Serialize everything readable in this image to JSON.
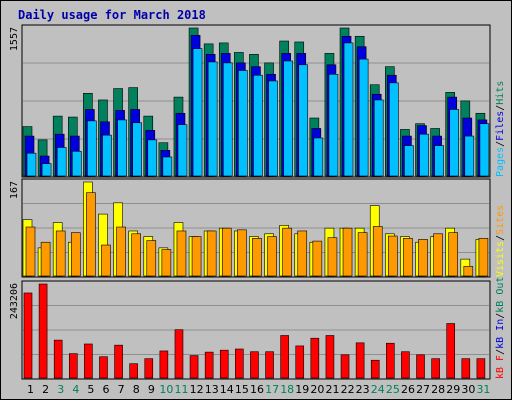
{
  "colors": {
    "background": "#ffffff",
    "frame": "#c0c0c0",
    "border": "#000000",
    "title": "#0000aa",
    "hits": "#00805c",
    "files": "#0000dd",
    "pages": "#00c0ff",
    "visits": "#ffff00",
    "sites": "#ff9900",
    "kbytes": "#ff0000",
    "weekend_label": "#00805c",
    "weekday_label": "#000000"
  },
  "chart_data": {
    "title": "Daily usage for March 2018",
    "type": "bar",
    "categories": [
      "1",
      "2",
      "3",
      "4",
      "5",
      "6",
      "7",
      "8",
      "9",
      "10",
      "11",
      "12",
      "13",
      "14",
      "15",
      "16",
      "17",
      "18",
      "19",
      "20",
      "21",
      "22",
      "23",
      "24",
      "25",
      "26",
      "27",
      "28",
      "29",
      "30",
      "31"
    ],
    "weekend_days": [
      "3",
      "4",
      "10",
      "11",
      "17",
      "18",
      "24",
      "25",
      "31"
    ],
    "panels": [
      {
        "id": "hits-files-pages",
        "ymax_label": "1557",
        "ylim": [
          0,
          1557
        ],
        "legend": [
          {
            "label": "Pages",
            "color_key": "pages"
          },
          {
            "label": "/",
            "color_key": "weekday_label"
          },
          {
            "label": "Files",
            "color_key": "files"
          },
          {
            "label": "/",
            "color_key": "weekday_label"
          },
          {
            "label": "Hits",
            "color_key": "hits"
          }
        ],
        "series": [
          {
            "name": "Hits",
            "color_key": "hits",
            "values": [
              520,
              380,
              630,
              620,
              870,
              800,
              920,
              930,
              630,
              350,
              830,
              1557,
              1390,
              1400,
              1300,
              1280,
              1190,
              1420,
              1410,
              610,
              1290,
              1557,
              1470,
              960,
              1150,
              490,
              550,
              500,
              880,
              790,
              660
            ]
          },
          {
            "name": "Files",
            "color_key": "files",
            "values": [
              420,
              210,
              440,
              420,
              700,
              570,
              690,
              700,
              480,
              270,
              660,
              1480,
              1280,
              1290,
              1190,
              1150,
              1070,
              1290,
              1290,
              500,
              1170,
              1470,
              1360,
              860,
              1060,
              420,
              530,
              420,
              830,
              610,
              590
            ]
          },
          {
            "name": "Pages",
            "color_key": "pages",
            "values": [
              240,
              130,
              300,
              260,
              580,
              430,
              590,
              560,
              380,
              200,
              540,
              1340,
              1200,
              1190,
              1110,
              1060,
              1000,
              1210,
              1170,
              400,
              1070,
              1400,
              1230,
              800,
              980,
              320,
              440,
              320,
              700,
              420,
              550
            ]
          }
        ]
      },
      {
        "id": "visits-sites",
        "ymax_label": "167",
        "ylim": [
          0,
          167
        ],
        "legend": [
          {
            "label": "Visits",
            "color_key": "visits"
          },
          {
            "label": "/",
            "color_key": "weekday_label"
          },
          {
            "label": "Sites",
            "color_key": "sites"
          }
        ],
        "series": [
          {
            "name": "Visits",
            "color_key": "visits",
            "values": [
              100,
              50,
              95,
              60,
              167,
              110,
              130,
              80,
              70,
              50,
              95,
              70,
              80,
              85,
              80,
              70,
              75,
              90,
              75,
              60,
              85,
              85,
              85,
              125,
              75,
              70,
              60,
              70,
              85,
              30,
              65
            ]
          },
          {
            "name": "Sites",
            "color_key": "sites",
            "values": [
              87,
              60,
              80,
              77,
              148,
              55,
              87,
              75,
              63,
              47,
              80,
              70,
              80,
              85,
              82,
              67,
              70,
              85,
              80,
              62,
              68,
              85,
              77,
              88,
              71,
              67,
              65,
              75,
              77,
              17,
              67
            ]
          }
        ]
      },
      {
        "id": "kbytes",
        "ymax_label": "243206",
        "ylim": [
          0,
          243206
        ],
        "legend": [
          {
            "label": "kB F",
            "color_key": "kbytes"
          },
          {
            "label": "/",
            "color_key": "weekday_label"
          },
          {
            "label": "kB In",
            "color_key": "files"
          },
          {
            "label": "/",
            "color_key": "weekday_label"
          },
          {
            "label": "kB Out",
            "color_key": "hits"
          }
        ],
        "series": [
          {
            "name": "kB F",
            "color_key": "kbytes",
            "values": [
              220000,
              243206,
              98000,
              63000,
              88000,
              55000,
              85000,
              37000,
              50000,
              70000,
              125000,
              58000,
              67000,
              72000,
              75000,
              68000,
              68000,
              110000,
              83000,
              103000,
              110000,
              60000,
              91000,
              46000,
              90000,
              68000,
              60000,
              50000,
              141000,
              50000,
              50000
            ]
          }
        ]
      }
    ]
  }
}
